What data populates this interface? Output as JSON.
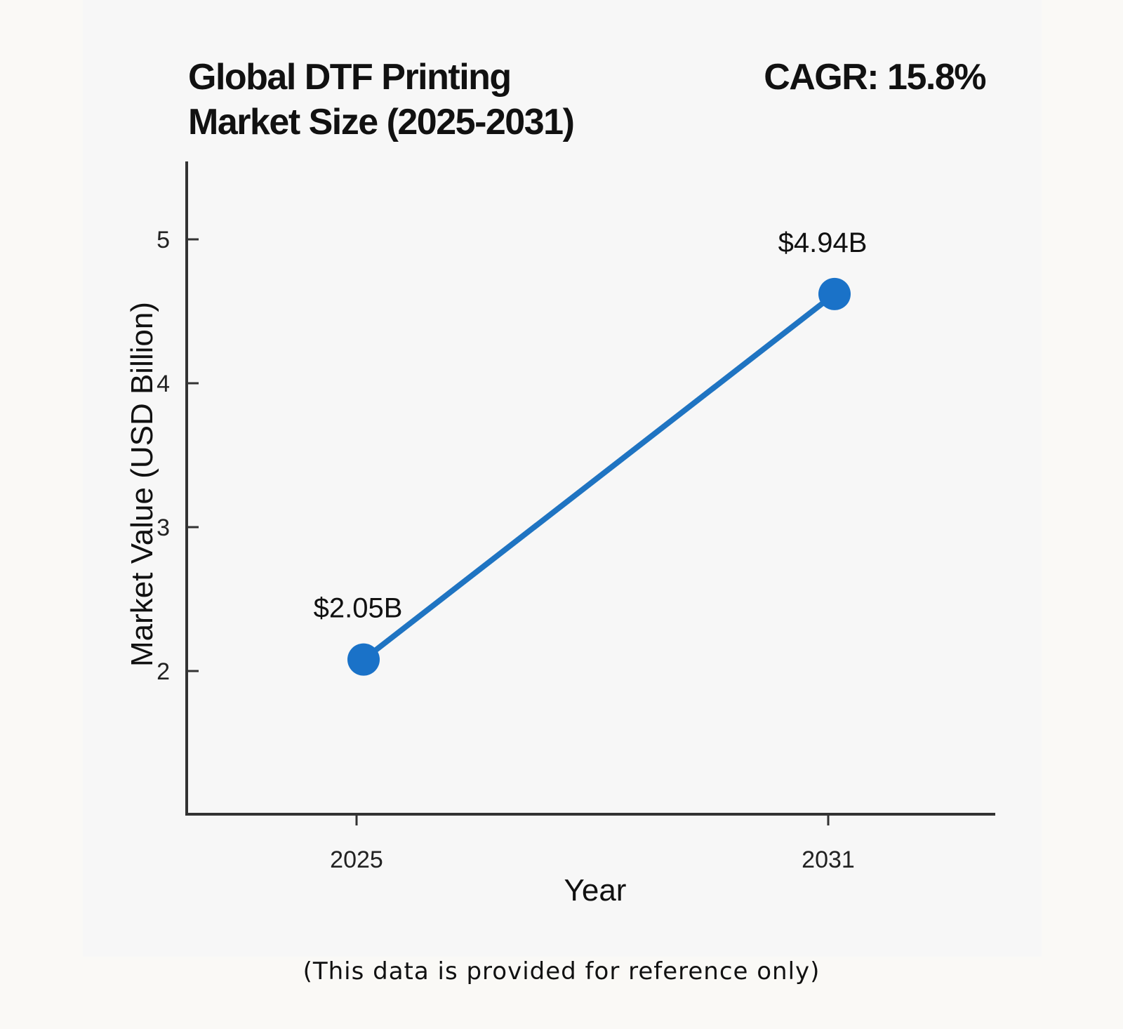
{
  "header": {
    "title_line1": "Global DTF Printing",
    "title_line2": "Market Size (2025-2031)",
    "cagr": "CAGR: 15.8%"
  },
  "footnote": "(This data is provided for reference only)",
  "colors": {
    "line": "#1f74c2",
    "marker": "#1a72c8",
    "axis": "#333333"
  },
  "chart_data": {
    "type": "line",
    "title": "Global DTF Printing Market Size (2025-2031)",
    "annotation": "CAGR: 15.8%",
    "xlabel": "Year",
    "ylabel": "Market Value (USD Billion)",
    "categories": [
      "2025",
      "2031"
    ],
    "series": [
      {
        "name": "Market Value",
        "values": [
          2.05,
          4.94
        ],
        "labels": [
          "$2.05B",
          "$4.94B"
        ]
      }
    ],
    "yticks": [
      2,
      3,
      4,
      5
    ],
    "ylim": [
      1,
      5.55
    ],
    "grid": false,
    "legend": "none"
  }
}
